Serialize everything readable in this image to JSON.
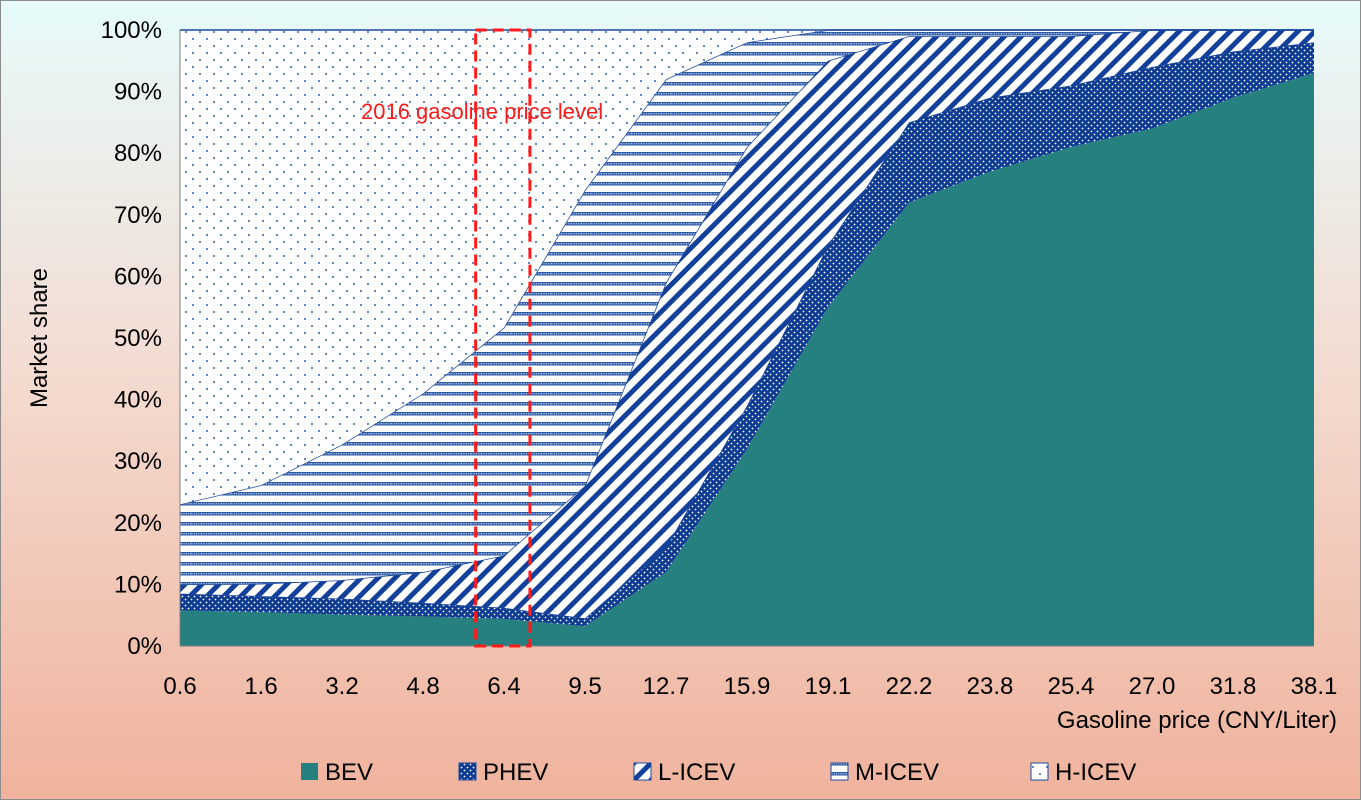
{
  "chart_data": {
    "type": "area",
    "stacked": true,
    "title": "",
    "xlabel": "Gasoline price (CNY/Liter)",
    "ylabel": "Market share",
    "ylim": [
      0,
      100
    ],
    "y_ticks": [
      "0%",
      "10%",
      "20%",
      "30%",
      "40%",
      "50%",
      "60%",
      "70%",
      "80%",
      "90%",
      "100%"
    ],
    "categories": [
      "0.6",
      "1.6",
      "3.2",
      "4.8",
      "6.4",
      "9.5",
      "12.7",
      "15.9",
      "19.1",
      "22.2",
      "23.8",
      "25.4",
      "27.0",
      "31.8",
      "38.1"
    ],
    "series": [
      {
        "name": "BEV",
        "values": [
          5.8,
          5.5,
          5.1,
          4.8,
          4.4,
          3.2,
          12.0,
          32.0,
          55.0,
          72.0,
          77.0,
          81.0,
          84.0,
          89.0,
          93.0
        ]
      },
      {
        "name": "PHEV",
        "values": [
          2.7,
          2.6,
          2.6,
          2.2,
          1.8,
          1.3,
          4.0,
          7.0,
          10.0,
          13.0,
          12.0,
          10.0,
          10.0,
          7.5,
          5.0
        ]
      },
      {
        "name": "L-ICEV",
        "values": [
          1.5,
          2.0,
          3.0,
          5.0,
          8.5,
          21.5,
          43.0,
          42.0,
          30.0,
          14.0,
          10.0,
          8.0,
          6.0,
          3.5,
          2.0
        ]
      },
      {
        "name": "M-ICEV",
        "values": [
          13.0,
          16.0,
          22.0,
          29.0,
          37.0,
          48.0,
          33.0,
          17.0,
          5.0,
          1.0,
          1.0,
          1.0,
          0.0,
          0.0,
          0.0
        ]
      },
      {
        "name": "H-ICEV",
        "values": [
          77.0,
          73.9,
          67.3,
          59.0,
          48.3,
          26.0,
          8.0,
          2.0,
          0.0,
          0.0,
          0.0,
          0.0,
          0.0,
          0.0,
          0.0
        ]
      }
    ],
    "annotation": {
      "text": "2016 gasoline price level",
      "x_from": "4.8",
      "x_to": "6.4",
      "style": "red dashed box"
    },
    "legend_position": "bottom",
    "grid": false
  },
  "colors": {
    "BEV": "#268080",
    "PHEV": "#0c3b91",
    "L-ICEV": "#13409a",
    "M-ICEV": "#2a5aa8",
    "H-ICEV": "#2a66b0",
    "annotation": "#ff1a1a",
    "outline": "#1e4a9c"
  }
}
